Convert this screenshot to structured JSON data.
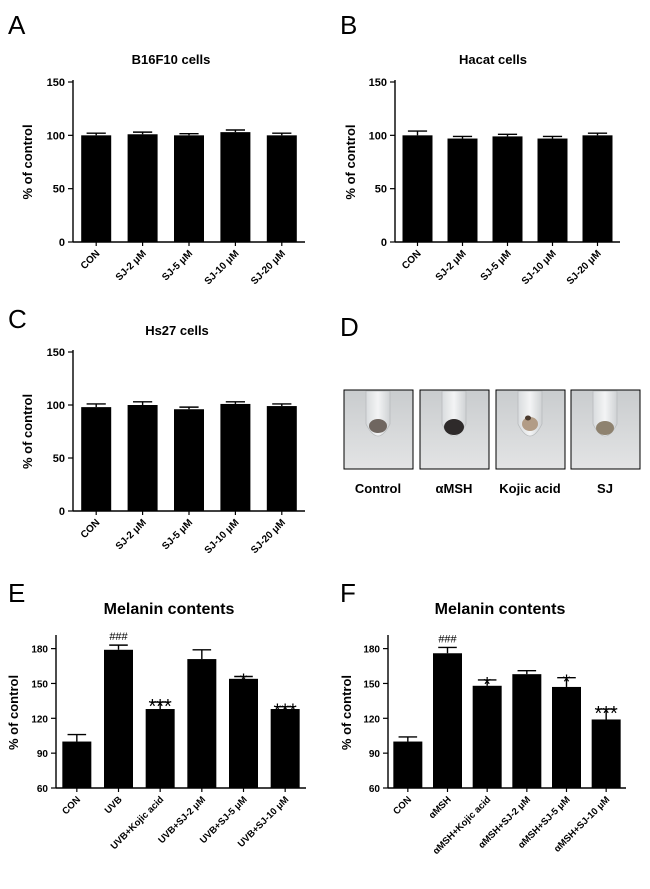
{
  "chart_data": [
    {
      "panel_letter": "A",
      "type": "bar",
      "title": "B16F10 cells",
      "ylabel": "% of control",
      "ylim": [
        0,
        150
      ],
      "yticks": [
        0,
        50,
        100,
        150
      ],
      "categories": [
        "CON",
        "SJ-2 μM",
        "SJ-5 μM",
        "SJ-10 μM",
        "SJ-20 μM"
      ],
      "values": [
        100,
        101,
        100,
        103,
        100
      ],
      "errors": [
        2,
        2,
        1.5,
        2,
        2
      ],
      "annotations": [
        "",
        "",
        "",
        "",
        ""
      ],
      "bar_color": "#000000"
    },
    {
      "panel_letter": "B",
      "type": "bar",
      "title": "Hacat cells",
      "ylabel": "% of control",
      "ylim": [
        0,
        150
      ],
      "yticks": [
        0,
        50,
        100,
        150
      ],
      "categories": [
        "CON",
        "SJ-2 μM",
        "SJ-5 μM",
        "SJ-10 μM",
        "SJ-20 μM"
      ],
      "values": [
        100,
        97,
        99,
        97,
        100
      ],
      "errors": [
        4,
        2,
        2,
        2,
        2
      ],
      "annotations": [
        "",
        "",
        "",
        "",
        ""
      ],
      "bar_color": "#000000"
    },
    {
      "panel_letter": "C",
      "type": "bar",
      "title": "Hs27 cells",
      "ylabel": "% of control",
      "ylim": [
        0,
        150
      ],
      "yticks": [
        0,
        50,
        100,
        150
      ],
      "categories": [
        "CON",
        "SJ-2 μM",
        "SJ-5 μM",
        "SJ-10 μM",
        "SJ-20 μM"
      ],
      "values": [
        98,
        100,
        96,
        101,
        99
      ],
      "errors": [
        3,
        3,
        2,
        2,
        2
      ],
      "annotations": [
        "",
        "",
        "",
        "",
        ""
      ],
      "bar_color": "#000000"
    },
    {
      "panel_letter": "E",
      "type": "bar",
      "title": "Melanin contents",
      "ylabel": "% of control",
      "ylim": [
        60,
        190
      ],
      "yticks": [
        60,
        90,
        120,
        150,
        180
      ],
      "categories": [
        "CON",
        "UVB",
        "UVB+Kojic acid",
        "UVB+SJ-2 μM",
        "UVB+SJ-5 μM",
        "UVB+SJ-10 μM"
      ],
      "values": [
        100,
        179,
        128,
        171,
        154,
        128
      ],
      "errors": [
        6,
        4,
        6,
        8,
        2,
        2
      ],
      "annotations": [
        "",
        "###",
        "***",
        "",
        "*",
        "***"
      ],
      "bar_color": "#000000"
    },
    {
      "panel_letter": "F",
      "type": "bar",
      "title": "Melanin contents",
      "ylabel": "% of control",
      "ylim": [
        60,
        190
      ],
      "yticks": [
        60,
        90,
        120,
        150,
        180
      ],
      "categories": [
        "CON",
        "αMSH",
        "αMSH+Kojic acid",
        "αMSH+SJ-2 μM",
        "αMSH+SJ-5 μM",
        "αMSH+SJ-10 μM"
      ],
      "values": [
        100,
        176,
        148,
        158,
        147,
        119
      ],
      "errors": [
        4,
        5,
        5,
        3,
        8,
        9
      ],
      "annotations": [
        "",
        "###",
        "*",
        "",
        "*",
        "***"
      ],
      "bar_color": "#000000"
    }
  ],
  "panel_d": {
    "panel_letter": "D",
    "tubes": [
      {
        "label": "Control",
        "pellet_color": "#6f6660"
      },
      {
        "label": "αMSH",
        "pellet_color": "#2e2a2a"
      },
      {
        "label": "Kojic acid",
        "pellet_color": "#b29c86"
      },
      {
        "label": "SJ",
        "pellet_color": "#8e826f"
      }
    ]
  }
}
